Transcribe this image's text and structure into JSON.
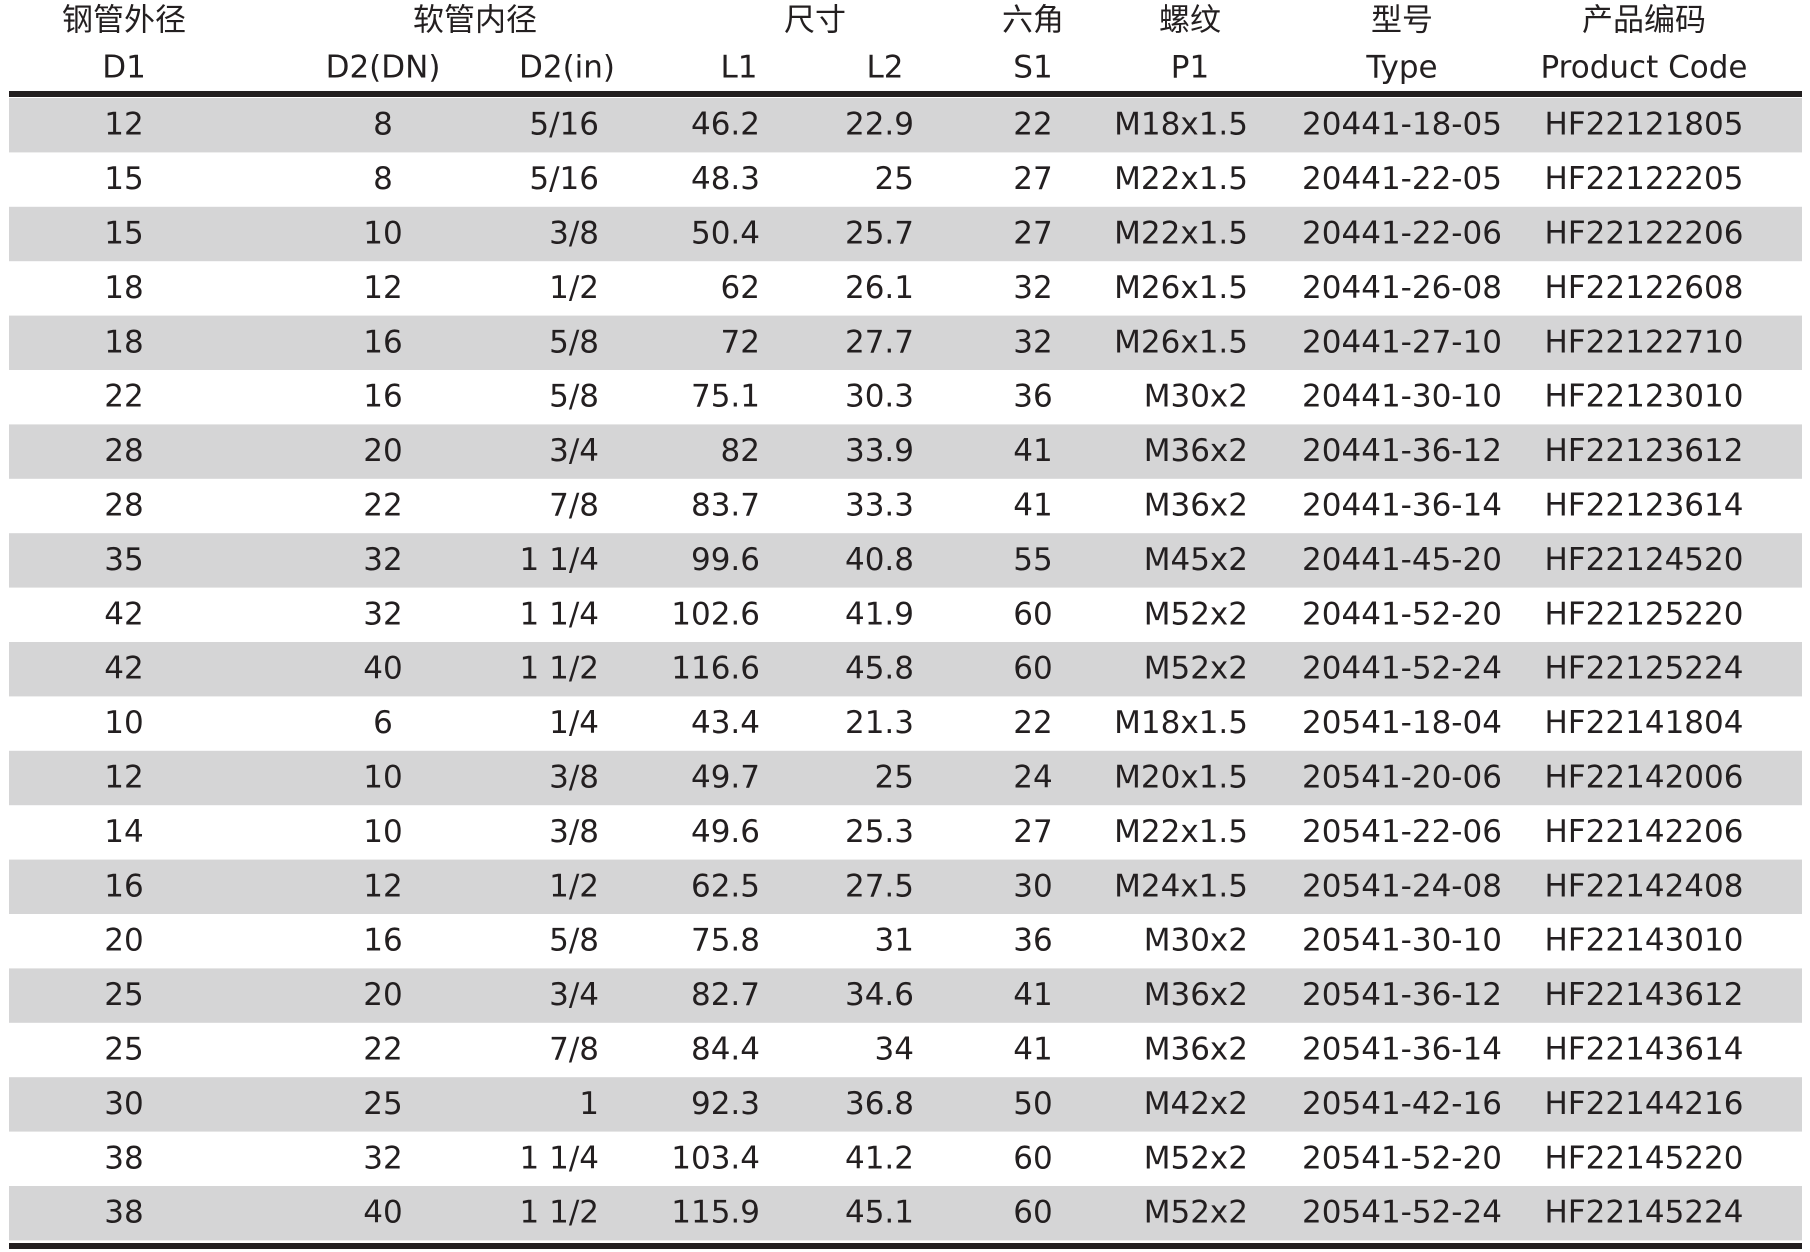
{
  "header": {
    "row1": [
      "钢管外径",
      "软管内径",
      "尺寸",
      "六角",
      "螺纹",
      "型号",
      "产品编码"
    ],
    "row2": [
      "D1",
      "D2(DN)",
      "D2(in)",
      "L1",
      "L2",
      "S1",
      "P1",
      "Type",
      "Product Code"
    ]
  },
  "table": {
    "rows": [
      [
        "12",
        "8",
        "5/16",
        "46.2",
        "22.9",
        "22",
        "M18x1.5",
        "20441-18-05",
        "HF22121805"
      ],
      [
        "15",
        "8",
        "5/16",
        "48.3",
        "25",
        "27",
        "M22x1.5",
        "20441-22-05",
        "HF22122205"
      ],
      [
        "15",
        "10",
        "3/8",
        "50.4",
        "25.7",
        "27",
        "M22x1.5",
        "20441-22-06",
        "HF22122206"
      ],
      [
        "18",
        "12",
        "1/2",
        "62",
        "26.1",
        "32",
        "M26x1.5",
        "20441-26-08",
        "HF22122608"
      ],
      [
        "18",
        "16",
        "5/8",
        "72",
        "27.7",
        "32",
        "M26x1.5",
        "20441-27-10",
        "HF22122710"
      ],
      [
        "22",
        "16",
        "5/8",
        "75.1",
        "30.3",
        "36",
        "M30x2",
        "20441-30-10",
        "HF22123010"
      ],
      [
        "28",
        "20",
        "3/4",
        "82",
        "33.9",
        "41",
        "M36x2",
        "20441-36-12",
        "HF22123612"
      ],
      [
        "28",
        "22",
        "7/8",
        "83.7",
        "33.3",
        "41",
        "M36x2",
        "20441-36-14",
        "HF22123614"
      ],
      [
        "35",
        "32",
        "1 1/4",
        "99.6",
        "40.8",
        "55",
        "M45x2",
        "20441-45-20",
        "HF22124520"
      ],
      [
        "42",
        "32",
        "1 1/4",
        "102.6",
        "41.9",
        "60",
        "M52x2",
        "20441-52-20",
        "HF22125220"
      ],
      [
        "42",
        "40",
        "1 1/2",
        "116.6",
        "45.8",
        "60",
        "M52x2",
        "20441-52-24",
        "HF22125224"
      ],
      [
        "10",
        "6",
        "1/4",
        "43.4",
        "21.3",
        "22",
        "M18x1.5",
        "20541-18-04",
        "HF22141804"
      ],
      [
        "12",
        "10",
        "3/8",
        "49.7",
        "25",
        "24",
        "M20x1.5",
        "20541-20-06",
        "HF22142006"
      ],
      [
        "14",
        "10",
        "3/8",
        "49.6",
        "25.3",
        "27",
        "M22x1.5",
        "20541-22-06",
        "HF22142206"
      ],
      [
        "16",
        "12",
        "1/2",
        "62.5",
        "27.5",
        "30",
        "M24x1.5",
        "20541-24-08",
        "HF22142408"
      ],
      [
        "20",
        "16",
        "5/8",
        "75.8",
        "31",
        "36",
        "M30x2",
        "20541-30-10",
        "HF22143010"
      ],
      [
        "25",
        "20",
        "3/4",
        "82.7",
        "34.6",
        "41",
        "M36x2",
        "20541-36-12",
        "HF22143612"
      ],
      [
        "25",
        "22",
        "7/8",
        "84.4",
        "34",
        "41",
        "M36x2",
        "20541-36-14",
        "HF22143614"
      ],
      [
        "30",
        "25",
        "1",
        "92.3",
        "36.8",
        "50",
        "M42x2",
        "20541-42-16",
        "HF22144216"
      ],
      [
        "38",
        "32",
        "1 1/4",
        "103.4",
        "41.2",
        "60",
        "M52x2",
        "20541-52-20",
        "HF22145220"
      ],
      [
        "38",
        "40",
        "1 1/2",
        "115.9",
        "45.1",
        "60",
        "M52x2",
        "20541-52-24",
        "HF22145224"
      ]
    ]
  }
}
